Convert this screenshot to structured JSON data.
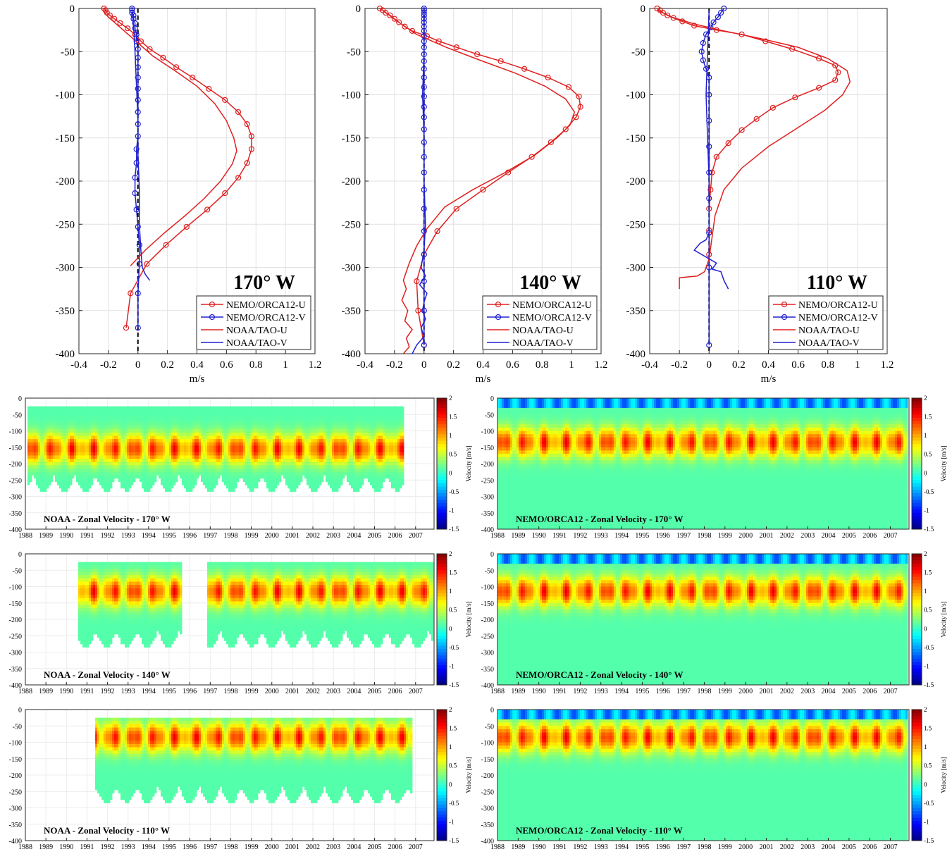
{
  "chart_data": [
    {
      "type": "line",
      "label": "170° W",
      "xlabel": "m/s",
      "xlim": [
        -0.4,
        1.2
      ],
      "ylim": [
        -400,
        0
      ],
      "xticks": [
        -0.4,
        -0.2,
        0,
        0.2,
        0.4,
        0.6,
        0.8,
        1,
        1.2
      ],
      "yticks": [
        0,
        -50,
        -100,
        -150,
        -200,
        -250,
        -300,
        -350,
        -400
      ],
      "legend_position": "lower-right",
      "series": [
        {
          "name": "NEMO/ORCA12-U",
          "color": "#e02020",
          "marker": "circle",
          "x": [
            -0.23,
            -0.22,
            -0.21,
            -0.19,
            -0.16,
            -0.12,
            -0.07,
            -0.02,
            0.02,
            0.08,
            0.17,
            0.26,
            0.37,
            0.48,
            0.59,
            0.68,
            0.74,
            0.77,
            0.77,
            0.74,
            0.68,
            0.59,
            0.47,
            0.33,
            0.19,
            0.06,
            -0.05,
            -0.08
          ],
          "y": [
            0,
            -2,
            -5,
            -8,
            -12,
            -17,
            -23,
            -30,
            -38,
            -47,
            -57,
            -68,
            -80,
            -93,
            -106,
            -120,
            -134,
            -148,
            -163,
            -179,
            -196,
            -214,
            -233,
            -253,
            -274,
            -296,
            -330,
            -370
          ]
        },
        {
          "name": "NEMO/ORCA12-V",
          "color": "#2020d0",
          "marker": "circle",
          "x": [
            -0.04,
            -0.04,
            -0.04,
            -0.03,
            -0.03,
            -0.02,
            -0.02,
            -0.01,
            -0.01,
            0,
            0,
            0,
            0,
            0,
            0,
            0,
            0,
            0,
            -0.01,
            -0.01,
            -0.02,
            -0.02,
            -0.01,
            0,
            0.01,
            0.01,
            0,
            0
          ],
          "y": [
            0,
            -2,
            -5,
            -8,
            -12,
            -17,
            -23,
            -30,
            -38,
            -47,
            -57,
            -68,
            -80,
            -93,
            -106,
            -120,
            -134,
            -148,
            -163,
            -179,
            -196,
            -214,
            -233,
            -253,
            -274,
            -296,
            -330,
            -370
          ]
        },
        {
          "name": "NOAA/TAO-U",
          "color": "#e02020",
          "marker": "none",
          "x": [
            -0.24,
            -0.2,
            -0.1,
            0,
            0.1,
            0.25,
            0.4,
            0.52,
            0.6,
            0.65,
            0.67,
            0.64,
            0.56,
            0.45,
            0.32,
            0.18,
            0.05,
            -0.05
          ],
          "y": [
            -2,
            -10,
            -25,
            -40,
            -55,
            -72,
            -90,
            -110,
            -130,
            -150,
            -165,
            -180,
            -200,
            -220,
            -240,
            -260,
            -280,
            -298
          ]
        },
        {
          "name": "NOAA/TAO-V",
          "color": "#2020d0",
          "marker": "none",
          "x": [
            -0.04,
            -0.03,
            -0.02,
            -0.01,
            0,
            0,
            0.01,
            0.01,
            0.02,
            0.03,
            0.05,
            0.08
          ],
          "y": [
            -2,
            -20,
            -50,
            -90,
            -130,
            -170,
            -210,
            -250,
            -280,
            -300,
            -308,
            -315
          ]
        }
      ]
    },
    {
      "type": "line",
      "label": "140° W",
      "xlabel": "m/s",
      "xlim": [
        -0.4,
        1.2
      ],
      "ylim": [
        -400,
        0
      ],
      "xticks": [
        -0.4,
        -0.2,
        0,
        0.2,
        0.4,
        0.6,
        0.8,
        1,
        1.2
      ],
      "yticks": [
        0,
        -50,
        -100,
        -150,
        -200,
        -250,
        -300,
        -350,
        -400
      ],
      "legend_position": "lower-right",
      "series": [
        {
          "name": "NEMO/ORCA12-U",
          "color": "#e02020",
          "marker": "circle",
          "x": [
            -0.3,
            -0.28,
            -0.26,
            -0.23,
            -0.2,
            -0.17,
            -0.13,
            -0.08,
            0.02,
            0.1,
            0.22,
            0.36,
            0.52,
            0.68,
            0.84,
            0.98,
            1.05,
            1.06,
            1.03,
            0.96,
            0.86,
            0.73,
            0.57,
            0.4,
            0.22,
            0.09,
            0,
            -0.05,
            -0.04,
            0
          ],
          "y": [
            0,
            -2,
            -5,
            -8,
            -12,
            -16,
            -21,
            -26,
            -32,
            -38,
            -45,
            -53,
            -61,
            -70,
            -80,
            -91,
            -102,
            -114,
            -126,
            -140,
            -155,
            -172,
            -190,
            -210,
            -232,
            -258,
            -285,
            -316,
            -350,
            -390
          ]
        },
        {
          "name": "NEMO/ORCA12-V",
          "color": "#2020d0",
          "marker": "circle",
          "x": [
            0,
            0,
            0,
            0,
            0,
            0,
            0,
            0,
            0,
            0,
            0,
            0,
            0,
            0,
            0,
            0,
            0,
            0,
            0,
            0,
            0,
            0,
            0,
            0,
            0,
            0,
            0,
            0,
            0,
            0
          ],
          "y": [
            0,
            -2,
            -5,
            -8,
            -12,
            -16,
            -21,
            -26,
            -32,
            -38,
            -45,
            -53,
            -61,
            -70,
            -80,
            -91,
            -102,
            -114,
            -126,
            -140,
            -155,
            -172,
            -190,
            -210,
            -232,
            -258,
            -285,
            -316,
            -350,
            -390
          ]
        },
        {
          "name": "NOAA/TAO-U",
          "color": "#e02020",
          "marker": "none",
          "x": [
            -0.28,
            -0.18,
            -0.05,
            0.15,
            0.38,
            0.62,
            0.82,
            0.96,
            1.02,
            0.99,
            0.9,
            0.75,
            0.55,
            0.33,
            0.14,
            0.02,
            -0.05,
            -0.1,
            -0.14,
            -0.12,
            -0.15,
            -0.11,
            -0.13,
            -0.08,
            -0.12,
            -0.1,
            -0.14
          ],
          "y": [
            -2,
            -15,
            -30,
            -45,
            -60,
            -75,
            -90,
            -105,
            -120,
            -135,
            -150,
            -170,
            -190,
            -210,
            -230,
            -255,
            -275,
            -295,
            -315,
            -325,
            -338,
            -350,
            -362,
            -372,
            -382,
            -392,
            -400
          ]
        },
        {
          "name": "NOAA/TAO-V",
          "color": "#2020d0",
          "marker": "none",
          "x": [
            0,
            0,
            -0.01,
            0,
            0,
            0.01,
            0,
            -0.02,
            0.01,
            -0.03,
            0.02,
            0,
            -0.01,
            0.01,
            -0.02,
            0,
            -0.05,
            -0.08
          ],
          "y": [
            -2,
            -50,
            -100,
            -150,
            -200,
            -250,
            -280,
            -300,
            -310,
            -320,
            -330,
            -340,
            -350,
            -360,
            -370,
            -380,
            -390,
            -400
          ]
        }
      ]
    },
    {
      "type": "line",
      "label": "110° W",
      "xlabel": "m/s",
      "xlim": [
        -0.4,
        1.2
      ],
      "ylim": [
        -400,
        0
      ],
      "xticks": [
        -0.4,
        -0.2,
        0,
        0.2,
        0.4,
        0.6,
        0.8,
        1,
        1.2
      ],
      "yticks": [
        0,
        -50,
        -100,
        -150,
        -200,
        -250,
        -300,
        -350,
        -400
      ],
      "legend_position": "lower-right",
      "series": [
        {
          "name": "NEMO/ORCA12-U",
          "color": "#e02020",
          "marker": "circle",
          "x": [
            -0.35,
            -0.33,
            -0.31,
            -0.28,
            -0.24,
            -0.18,
            -0.1,
            0.05,
            0.22,
            0.38,
            0.56,
            0.74,
            0.85,
            0.87,
            0.85,
            0.74,
            0.58,
            0.43,
            0.32,
            0.22,
            0.13,
            0.05,
            0.02,
            0.01,
            0,
            0,
            0
          ],
          "y": [
            0,
            -2,
            -5,
            -8,
            -11,
            -15,
            -20,
            -25,
            -30,
            -38,
            -47,
            -58,
            -66,
            -74,
            -83,
            -92,
            -103,
            -115,
            -128,
            -141,
            -156,
            -172,
            -190,
            -210,
            -232,
            -257,
            -285
          ]
        },
        {
          "name": "NEMO/ORCA12-V",
          "color": "#2020d0",
          "marker": "circle",
          "x": [
            0.1,
            0.08,
            0.06,
            0.03,
            0.01,
            -0.02,
            -0.04,
            -0.05,
            -0.04,
            -0.02,
            0,
            0,
            0,
            0,
            0,
            0,
            0,
            0,
            0
          ],
          "y": [
            0,
            -5,
            -10,
            -16,
            -22,
            -30,
            -40,
            -50,
            -60,
            -70,
            -80,
            -100,
            -130,
            -160,
            -190,
            -220,
            -260,
            -300,
            -390
          ]
        },
        {
          "name": "NOAA/TAO-U",
          "color": "#e02020",
          "marker": "none",
          "x": [
            -0.35,
            -0.25,
            -0.1,
            0.1,
            0.35,
            0.6,
            0.8,
            0.93,
            0.95,
            0.9,
            0.78,
            0.6,
            0.4,
            0.22,
            0.1,
            0.04,
            0.02,
            0,
            -0.03,
            -0.08,
            -0.2,
            -0.2
          ],
          "y": [
            -2,
            -10,
            -18,
            -26,
            -35,
            -45,
            -58,
            -72,
            -85,
            -100,
            -118,
            -138,
            -160,
            -185,
            -210,
            -240,
            -265,
            -290,
            -305,
            -310,
            -312,
            -325
          ]
        },
        {
          "name": "NOAA/TAO-V",
          "color": "#2020d0",
          "marker": "none",
          "x": [
            0,
            -0.01,
            -0.02,
            -0.01,
            0,
            0,
            0,
            -0.02,
            -0.06,
            -0.1,
            -0.05,
            0,
            0.05,
            0.02,
            0.08,
            0.1,
            0.13
          ],
          "y": [
            -2,
            -50,
            -100,
            -150,
            -200,
            -240,
            -260,
            -268,
            -272,
            -280,
            -285,
            -290,
            -295,
            -302,
            -305,
            -315,
            -325
          ]
        }
      ]
    },
    {
      "type": "heatmap",
      "title": "NOAA - Zonal Velocity - 170° W",
      "ylim": [
        -400,
        0
      ],
      "yticks": [
        0,
        -50,
        -100,
        -150,
        -200,
        -250,
        -300,
        -350,
        -400
      ],
      "xticks": [
        "1988",
        "1989",
        "1990",
        "1991",
        "1992",
        "1993",
        "1994",
        "1995",
        "1996",
        "1997",
        "1998",
        "1999",
        "2000",
        "2001",
        "2002",
        "2003",
        "2004",
        "2005",
        "2006",
        "2007"
      ],
      "colorbar": {
        "label": "Velocity [m/s]",
        "range": [
          -1.5,
          2
        ],
        "ticks": [
          2,
          1.5,
          1,
          0.5,
          0,
          -0.5,
          -1,
          -1.5
        ]
      },
      "coverage_years": [
        1988.1,
        2006.4
      ],
      "core_depth": -150
    },
    {
      "type": "heatmap",
      "title": "NEMO/ORCA12 - Zonal Velocity - 170° W",
      "ylim": [
        -400,
        0
      ],
      "yticks": [
        0,
        -50,
        -100,
        -150,
        -200,
        -250,
        -300,
        -350,
        -400
      ],
      "xticks": [
        "1988",
        "1989",
        "1990",
        "1991",
        "1992",
        "1993",
        "1994",
        "1995",
        "1996",
        "1997",
        "1998",
        "1999",
        "2000",
        "2001",
        "2002",
        "2003",
        "2004",
        "2005",
        "2006",
        "2007"
      ],
      "colorbar": {
        "label": "Velocity [m/s]",
        "range": [
          -1.5,
          2
        ],
        "ticks": [
          2,
          1.5,
          1,
          0.5,
          0,
          -0.5,
          -1,
          -1.5
        ]
      },
      "coverage_years": [
        1988,
        2007.8
      ],
      "core_depth": -130
    },
    {
      "type": "heatmap",
      "title": "NOAA - Zonal Velocity - 140° W",
      "ylim": [
        -400,
        0
      ],
      "yticks": [
        0,
        -50,
        -100,
        -150,
        -200,
        -250,
        -300,
        -350,
        -400
      ],
      "xticks": [
        "1988",
        "1989",
        "1990",
        "1991",
        "1992",
        "1993",
        "1994",
        "1995",
        "1996",
        "1997",
        "1998",
        "1999",
        "2000",
        "2001",
        "2002",
        "2003",
        "2004",
        "2005",
        "2006",
        "2007"
      ],
      "colorbar": {
        "label": "Velocity [m/s]",
        "range": [
          -1.5,
          2
        ],
        "ticks": [
          2,
          1.5,
          1,
          0.5,
          0,
          -0.5,
          -1,
          -1.5
        ]
      },
      "coverage_years": [
        1990.5,
        2007.8
      ],
      "gap_years": [
        1995.6,
        1996.8
      ],
      "core_depth": -110
    },
    {
      "type": "heatmap",
      "title": "NEMO/ORCA12 - Zonal Velocity - 140° W",
      "ylim": [
        -400,
        0
      ],
      "yticks": [
        0,
        -50,
        -100,
        -150,
        -200,
        -250,
        -300,
        -350,
        -400
      ],
      "xticks": [
        "1988",
        "1989",
        "1990",
        "1991",
        "1992",
        "1993",
        "1994",
        "1995",
        "1996",
        "1997",
        "1998",
        "1999",
        "2000",
        "2001",
        "2002",
        "2003",
        "2004",
        "2005",
        "2006",
        "2007"
      ],
      "colorbar": {
        "label": "Velocity [m/s]",
        "range": [
          -1.5,
          2
        ],
        "ticks": [
          2,
          1.5,
          1,
          0.5,
          0,
          -0.5,
          -1,
          -1.5
        ]
      },
      "coverage_years": [
        1988,
        2007.8
      ],
      "core_depth": -110
    },
    {
      "type": "heatmap",
      "title": "NOAA - Zonal Velocity - 110° W",
      "ylim": [
        -400,
        0
      ],
      "yticks": [
        0,
        -50,
        -100,
        -150,
        -200,
        -250,
        -300,
        -350,
        -400
      ],
      "xticks": [
        "1988",
        "1989",
        "1990",
        "1991",
        "1992",
        "1993",
        "1994",
        "1995",
        "1996",
        "1997",
        "1998",
        "1999",
        "2000",
        "2001",
        "2002",
        "2003",
        "2004",
        "2005",
        "2006",
        "2007"
      ],
      "colorbar": {
        "label": "Velocity [m/s]",
        "range": [
          -1.5,
          2
        ],
        "ticks": [
          2,
          1.5,
          1,
          0.5,
          0,
          -0.5,
          -1,
          -1.5
        ]
      },
      "coverage_years": [
        1991.3,
        2006.8
      ],
      "core_depth": -80
    },
    {
      "type": "heatmap",
      "title": "NEMO/ORCA12 - Zonal Velocity - 110° W",
      "ylim": [
        -400,
        0
      ],
      "yticks": [
        0,
        -50,
        -100,
        -150,
        -200,
        -250,
        -300,
        -350,
        -400
      ],
      "xticks": [
        "1988",
        "1989",
        "1990",
        "1991",
        "1992",
        "1993",
        "1994",
        "1995",
        "1996",
        "1997",
        "1998",
        "1999",
        "2000",
        "2001",
        "2002",
        "2003",
        "2004",
        "2005",
        "2006",
        "2007"
      ],
      "colorbar": {
        "label": "Velocity [m/s]",
        "range": [
          -1.5,
          2
        ],
        "ticks": [
          2,
          1.5,
          1,
          0.5,
          0,
          -0.5,
          -1,
          -1.5
        ]
      },
      "coverage_years": [
        1988,
        2007.8
      ],
      "core_depth": -80
    }
  ]
}
